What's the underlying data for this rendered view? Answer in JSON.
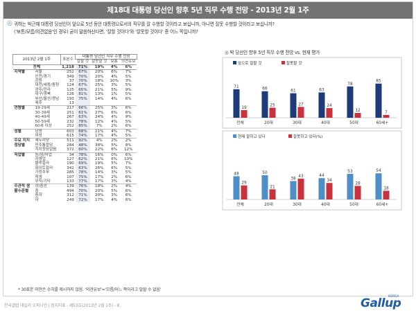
{
  "title": "제18대 대통령 당선인 향후 5년 직무 수행 전망 - 2013년 2월 1주",
  "question": [
    "귀하는 박근혜 대통령 당선인이 앞으로 5년 동안 대통령으로서의 직무를 잘 수행할 것이라고 보십니까, 아니면 잘못 수행할 것이라고 보십니까?",
    "('보통/모름/의견없음'인 경우) 굳이 말씀하신다면, '잘할 것이다'와 '잘못할 것이다' 중 어느 쪽입니까?"
  ],
  "table": {
    "date_label": "2013년 2월 1주",
    "base_label": "표본수",
    "header_group": "대통령 당선인 직무 수행 전망",
    "columns": [
      "잘할 것",
      "잘못할 것",
      "보통",
      "의견유보"
    ],
    "total": {
      "label": "전체",
      "n": "1,218",
      "values": [
        "71%",
        "19%",
        "4%",
        "6%"
      ]
    },
    "groups": [
      {
        "name": "지역별",
        "rows": [
          {
            "label": "서울",
            "n": "252",
            "values": [
              "67%",
              "20%",
              "6%",
              "7%"
            ]
          },
          {
            "label": "인천/경기",
            "n": "349",
            "values": [
              "70%",
              "20%",
              "4%",
              "5%"
            ]
          },
          {
            "label": "강원",
            "n": "37",
            "values": [
              "70%",
              "18%",
              "10%",
              "3%"
            ]
          },
          {
            "label": "대전/세종/충청",
            "n": "124",
            "values": [
              "67%",
              "25%",
              "3%",
              "5%"
            ]
          },
          {
            "label": "광주/전라",
            "n": "125",
            "values": [
              "65%",
              "21%",
              "5%",
              "9%"
            ]
          },
          {
            "label": "대구/경북",
            "n": "126",
            "values": [
              "81%",
              "13%",
              "1%",
              "5%"
            ]
          },
          {
            "label": "부산/울산/경남",
            "n": "193",
            "values": [
              "75%",
              "14%",
              "4%",
              "6%"
            ]
          },
          {
            "label": "제주",
            "n": "13",
            "values": [
              "",
              "",
              "",
              ""
            ]
          }
        ]
      },
      {
        "name": "연령별",
        "rows": [
          {
            "label": "19-29세",
            "n": "217",
            "values": [
              "66%",
              "25%",
              "3%",
              "6%"
            ]
          },
          {
            "label": "30-39세",
            "n": "251",
            "values": [
              "61%",
              "27%",
              "6%",
              "6%"
            ]
          },
          {
            "label": "40-49세",
            "n": "267",
            "values": [
              "63%",
              "24%",
              "4%",
              "9%"
            ]
          },
          {
            "label": "50-59세",
            "n": "232",
            "values": [
              "78%",
              "12%",
              "4%",
              "5%"
            ]
          },
          {
            "label": "60세 이상",
            "n": "252",
            "values": [
              "85%",
              "7%",
              "2%",
              "6%"
            ]
          }
        ]
      },
      {
        "name": "성별",
        "rows": [
          {
            "label": "남성",
            "n": "603",
            "values": [
              "68%",
              "21%",
              "4%",
              "7%"
            ]
          },
          {
            "label": "여성",
            "n": "615",
            "values": [
              "74%",
              "17%",
              "4%",
              "5%"
            ]
          }
        ]
      },
      {
        "name": "주요 지지 정당별",
        "rows": [
          {
            "label": "새누리당",
            "n": "511",
            "values": [
              "92%",
              "4%",
              "2%",
              "2%"
            ]
          },
          {
            "label": "민주통합당",
            "n": "284",
            "values": [
              "48%",
              "38%",
              "5%",
              "8%"
            ]
          },
          {
            "label": "지지정당없음",
            "n": "372",
            "values": [
              "60%",
              "22%",
              "6%",
              "12%"
            ]
          }
        ]
      },
      {
        "name": "직업별",
        "rows": [
          {
            "label": "농/임/어업",
            "n": "34",
            "values": [
              "78%",
              "16%",
              "0%",
              "6%"
            ]
          },
          {
            "label": "자영업",
            "n": "127",
            "values": [
              "62%",
              "21%",
              "6%",
              "10%"
            ]
          },
          {
            "label": "블루칼라",
            "n": "190",
            "values": [
              "69%",
              "19%",
              "5%",
              "7%"
            ]
          },
          {
            "label": "화이트칼라",
            "n": "342",
            "values": [
              "63%",
              "26%",
              "6%",
              "5%"
            ]
          },
          {
            "label": "가정주부",
            "n": "285",
            "values": [
              "78%",
              "14%",
              "3%",
              "5%"
            ]
          },
          {
            "label": "학생",
            "n": "107",
            "values": [
              "75%",
              "17%",
              "2%",
              "6%"
            ]
          },
          {
            "label": "무직/기타",
            "n": "133",
            "values": [
              "77%",
              "17%",
              "3%",
              "4%"
            ]
          }
        ]
      },
      {
        "name": "주관적 생활수준별",
        "rows": [
          {
            "label": "상/중상",
            "n": "139",
            "values": [
              "76%",
              "18%",
              "2%",
              "4%"
            ]
          },
          {
            "label": "중",
            "n": "494",
            "values": [
              "70%",
              "20%",
              "5%",
              "6%"
            ]
          },
          {
            "label": "중하",
            "n": "312",
            "values": [
              "71%",
              "20%",
              "3%",
              "6%"
            ]
          },
          {
            "label": "하",
            "n": "249",
            "values": [
              "72%",
              "17%",
              "4%",
              "6%"
            ]
          }
        ]
      }
    ]
  },
  "footnote": "* 30표본 미만은 수치를 제시하지 않음. '의견유보'='모름/어느 쪽이라고 말할 수 없음'",
  "credit": "한국갤럽 데일리 오피니언 | 정치지표 - 제53호(2013년 2월 1주) - 8",
  "logo_text": "Gallup",
  "logo_small": "KOREA",
  "chart_title": "박 당선인 향후 5년 직무 수행 전망 vs. 현재 평가",
  "colors": {
    "navy": "#1f3a78",
    "red": "#c8323c",
    "blue": "#4f8fc8",
    "title_bg": "#737373"
  },
  "chart_data": [
    {
      "type": "bar",
      "categories": [
        "전체",
        "20대",
        "30대",
        "40대",
        "50대",
        "60세+"
      ],
      "series": [
        {
          "name": "앞으로 잘할 것",
          "values": [
            71,
            66,
            61,
            63,
            78,
            85
          ]
        },
        {
          "name": "잘못할 것",
          "values": [
            19,
            25,
            27,
            24,
            12,
            7
          ]
        }
      ]
    },
    {
      "type": "bar",
      "categories": [
        "전체",
        "20대",
        "30대",
        "40대",
        "50대",
        "60세+"
      ],
      "series": [
        {
          "name": "현재 잘하고 있다",
          "values": [
            48,
            50,
            38,
            44,
            53,
            54
          ]
        },
        {
          "name": "잘못하고 있다(%)",
          "values": [
            29,
            21,
            43,
            34,
            28,
            18
          ]
        }
      ]
    }
  ]
}
